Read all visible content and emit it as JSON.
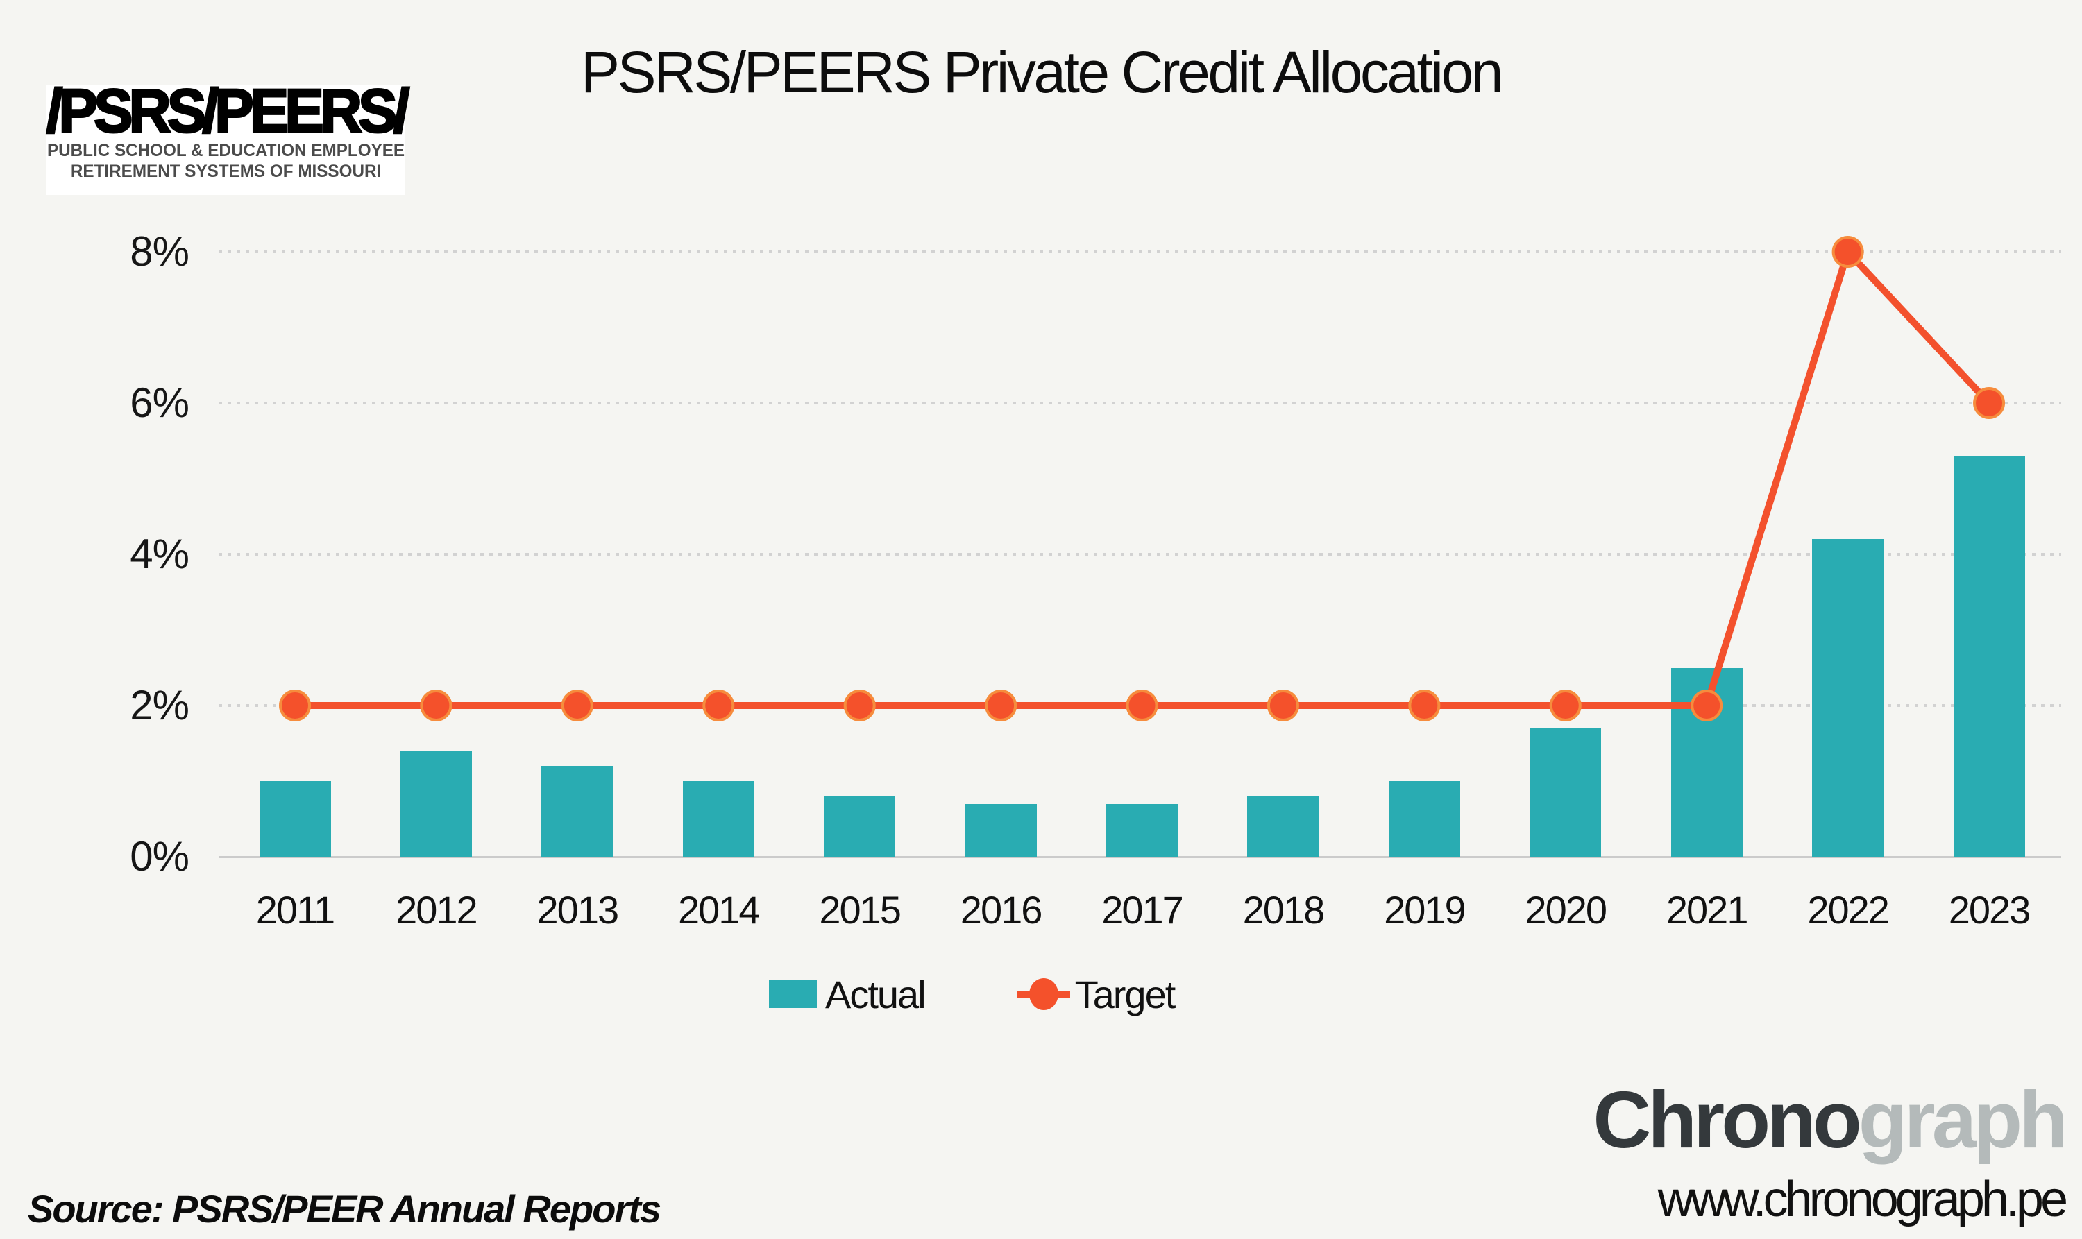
{
  "title": "PSRS/PEERS Private Credit Allocation",
  "logo": {
    "main": "PSRS/PEERS",
    "line1": "PUBLIC SCHOOL & EDUCATION EMPLOYEE",
    "line2": "RETIREMENT SYSTEMS OF MISSOURI"
  },
  "legend": {
    "actual": "Actual",
    "target": "Target"
  },
  "source_note": "Source: PSRS/PEER Annual Reports",
  "branding": {
    "brand_dark": "Chrono",
    "brand_light": "graph",
    "website": "www.chronograph.pe"
  },
  "colors": {
    "background": "#F5F5F2",
    "actual_bar": "#29ACB2",
    "target_line": "#F3512D",
    "marker_fill": "#F4512B",
    "marker_ring": "#F68C3D",
    "gridline": "#D2D2D2",
    "axis_line": "#CBCBCB",
    "text": "#0D0D0D",
    "brand_dark": "#34393C",
    "brand_light": "#B4BABA"
  },
  "chart_data": {
    "type": "bar",
    "title": "PSRS/PEERS Private Credit Allocation",
    "categories": [
      "2011",
      "2012",
      "2013",
      "2014",
      "2015",
      "2016",
      "2017",
      "2018",
      "2019",
      "2020",
      "2021",
      "2022",
      "2023"
    ],
    "series": [
      {
        "name": "Actual",
        "type": "bar",
        "values": [
          1.0,
          1.4,
          1.2,
          1.0,
          0.8,
          0.7,
          0.7,
          0.8,
          1.0,
          1.7,
          2.5,
          4.2,
          5.3
        ]
      },
      {
        "name": "Target",
        "type": "line",
        "values": [
          2,
          2,
          2,
          2,
          2,
          2,
          2,
          2,
          2,
          2,
          2,
          8,
          6
        ]
      }
    ],
    "unit": "%",
    "xlabel": "",
    "ylabel": "",
    "yticks": [
      0,
      2,
      4,
      6,
      8
    ],
    "ytick_labels": [
      "0%",
      "2%",
      "4%",
      "6%",
      "8%"
    ],
    "ylim": [
      0,
      8.6
    ],
    "grid": "horizontal-dotted",
    "legend_position": "bottom"
  }
}
